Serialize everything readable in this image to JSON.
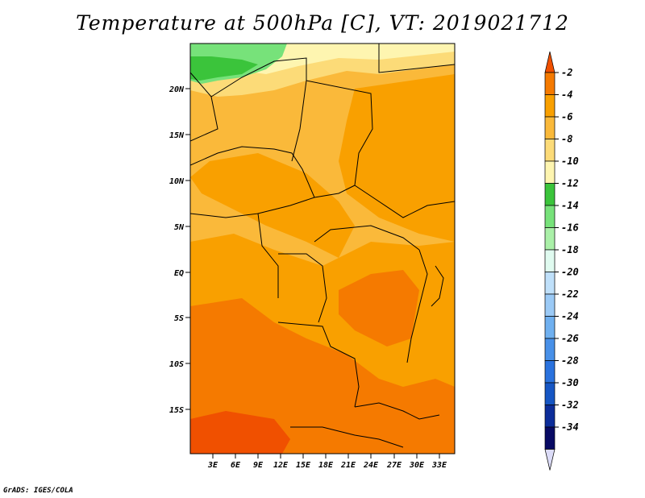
{
  "title": "Temperature at 500hPa [C], VT: 2019021712",
  "credit": "GrADS: IGES/COLA",
  "map": {
    "lat_labels": [
      "20N",
      "15N",
      "10N",
      "5N",
      "EQ",
      "5S",
      "10S",
      "15S"
    ],
    "lon_labels": [
      "3E",
      "6E",
      "9E",
      "12E",
      "15E",
      "18E",
      "21E",
      "24E",
      "27E",
      "30E",
      "33E"
    ]
  },
  "legend": {
    "labels": [
      "-2",
      "-4",
      "-6",
      "-8",
      "-10",
      "-12",
      "-14",
      "-16",
      "-18",
      "-20",
      "-22",
      "-24",
      "-26",
      "-28",
      "-30",
      "-32",
      "-34"
    ],
    "colors": [
      "#f05000",
      "#f57a00",
      "#f9a000",
      "#fab93a",
      "#fcdb78",
      "#fef5b0",
      "#3bc43b",
      "#77e27a",
      "#aaf0a8",
      "#e0fbf0",
      "#bfe0fa",
      "#9bcaf6",
      "#6fb0f0",
      "#4890e8",
      "#2a72de",
      "#1656c4",
      "#0c2d9a",
      "#080a64",
      "#dcdcf8"
    ]
  }
}
